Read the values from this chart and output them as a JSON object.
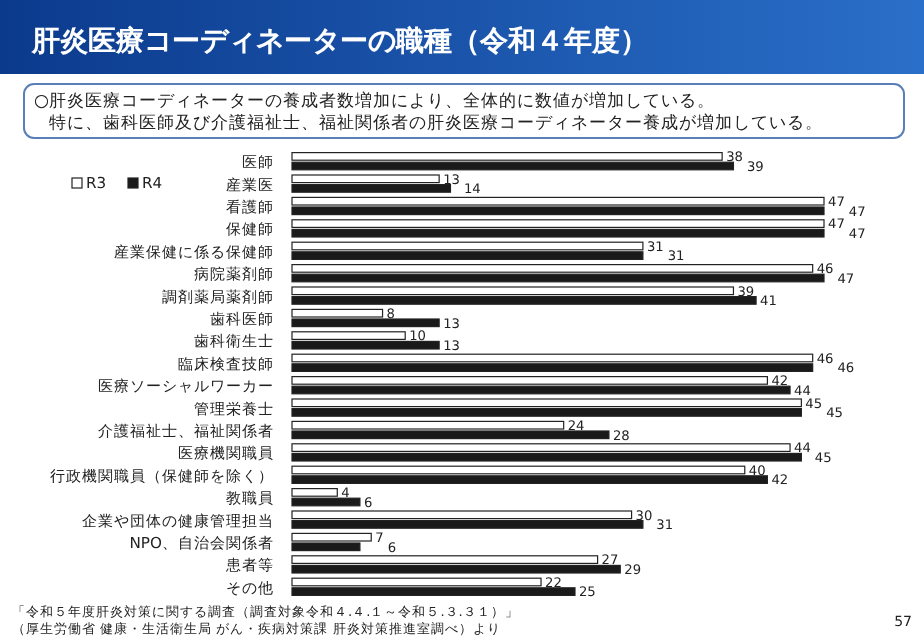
{
  "chart_data": {
    "type": "bar",
    "orientation": "horizontal",
    "title": "肝炎医療コーディネーターの職種（令和４年度）",
    "subtitle": "○肝炎医療コーディネーターの養成者数増加により、全体的に数値が増加している。特に、歯科医師及び介護福祉士、福祉関係者の肝炎医療コーディネーター養成が増加している。",
    "categories": [
      "医師",
      "産業医",
      "看護師",
      "保健師",
      "産業保健に係る保健師",
      "病院薬剤師",
      "調剤薬局薬剤師",
      "歯科医師",
      "歯科衛生士",
      "臨床検査技師",
      "医療ソーシャルワーカー",
      "管理栄養士",
      "介護福祉士、福祉関係者",
      "医療機関職員",
      "行政機関職員（保健師を除く）",
      "教職員",
      "企業や団体の健康管理担当",
      "NPO、自治会関係者",
      "患者等",
      "その他"
    ],
    "series": [
      {
        "name": "R3",
        "color": "#ffffff",
        "values": [
          38,
          13,
          47,
          47,
          31,
          46,
          39,
          8,
          10,
          46,
          42,
          45,
          24,
          44,
          40,
          4,
          30,
          7,
          27,
          22
        ]
      },
      {
        "name": "R4",
        "color": "#1a1a1a",
        "values": [
          39,
          14,
          47,
          47,
          31,
          47,
          41,
          13,
          13,
          46,
          44,
          45,
          28,
          45,
          42,
          6,
          31,
          6,
          29,
          25
        ]
      }
    ],
    "data_labels": true,
    "legend": "top left",
    "annotations": [
      "「令和５年度肝炎対策に関する調査（調査対象令和４.４.１～令和５.３.３１）」（厚生労働省 健康・生活衛生局 がん・疾病対策課 肝炎対策推進室調べ）より",
      "57"
    ]
  }
}
